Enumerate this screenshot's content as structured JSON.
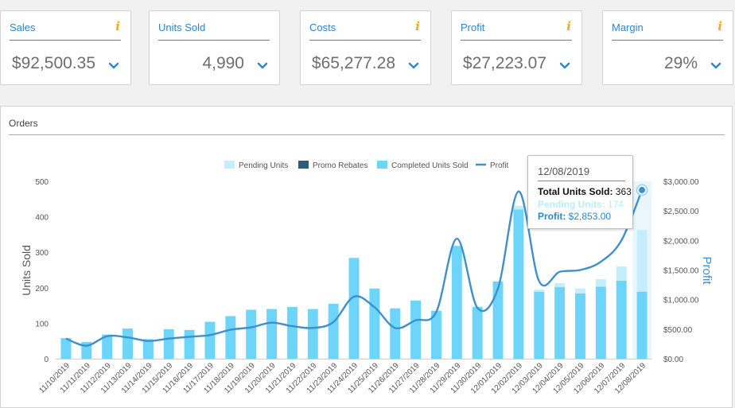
{
  "kpis": [
    {
      "title": "Sales",
      "value": "$92,500.35",
      "info": true
    },
    {
      "title": "Units Sold",
      "value": "4,990",
      "info": false
    },
    {
      "title": "Costs",
      "value": "$65,277.28",
      "info": true
    },
    {
      "title": "Profit",
      "value": "$27,223.07",
      "info": true
    },
    {
      "title": "Margin",
      "value": "29%",
      "info": true
    }
  ],
  "info_glyph": "i",
  "panel": {
    "title": "Orders"
  },
  "tooltip": {
    "date": "12/08/2019",
    "total_label": "Total Units Sold:",
    "total_value": "363",
    "pending_label": "Pending Units:",
    "pending_value": "174",
    "profit_label": "Profit:",
    "profit_value": "$2,853.00"
  },
  "colors": {
    "accent": "#2f86c4",
    "pending": "#c5eefc",
    "promo": "#2d5d7b",
    "completed": "#6dd4fa",
    "profit": "#3f8fc9",
    "info": "#f0ad1c"
  },
  "chart_data": {
    "type": "bar",
    "categories": [
      "11/10/2019",
      "11/11/2019",
      "11/12/2019",
      "11/13/2019",
      "11/14/2019",
      "11/15/2019",
      "11/16/2019",
      "11/17/2019",
      "11/18/2019",
      "11/19/2019",
      "11/20/2019",
      "11/21/2019",
      "11/22/2019",
      "11/23/2019",
      "11/24/2019",
      "11/25/2019",
      "11/26/2019",
      "11/27/2019",
      "11/28/2019",
      "11/29/2019",
      "11/30/2019",
      "12/01/2019",
      "12/02/2019",
      "12/03/2019",
      "12/04/2019",
      "12/05/2019",
      "12/06/2019",
      "12/07/2019",
      "12/08/2019"
    ],
    "series": [
      {
        "name": "Pending Units",
        "values": [
          0,
          0,
          0,
          0,
          0,
          0,
          0,
          0,
          0,
          0,
          0,
          0,
          0,
          0,
          0,
          0,
          0,
          0,
          0,
          0,
          0,
          0,
          10,
          6,
          11,
          14,
          21,
          40,
          174
        ]
      },
      {
        "name": "Promo Rebates",
        "values": [
          0,
          0,
          0,
          0,
          0,
          0,
          0,
          0,
          0,
          0,
          0,
          0,
          0,
          0,
          0,
          0,
          0,
          0,
          0,
          0,
          0,
          0,
          0,
          0,
          0,
          0,
          0,
          0,
          0
        ]
      },
      {
        "name": "Completed Units Sold",
        "values": [
          58,
          47,
          68,
          85,
          55,
          83,
          81,
          104,
          120,
          138,
          140,
          146,
          140,
          155,
          284,
          198,
          142,
          164,
          135,
          318,
          146,
          218,
          421,
          189,
          202,
          184,
          203,
          220,
          189
        ]
      },
      {
        "name": "Profit",
        "values": [
          340,
          220,
          380,
          360,
          300,
          340,
          370,
          400,
          490,
          530,
          610,
          550,
          520,
          620,
          1050,
          870,
          520,
          650,
          790,
          2030,
          860,
          1190,
          2830,
          1310,
          1470,
          1500,
          1640,
          2000,
          2853
        ]
      }
    ],
    "ylabel": "Units Sold",
    "y2label": "Profit",
    "ylim": [
      0,
      500
    ],
    "yticks": [
      "0",
      "100",
      "200",
      "300",
      "400",
      "500"
    ],
    "y2lim": [
      0,
      3000
    ],
    "y2ticks": [
      "$0.00",
      "$500.00",
      "$1,000.00",
      "$1,500.00",
      "$2,000.00",
      "$2,500.00",
      "$3,000.00"
    ],
    "legend": [
      "Pending Units",
      "Promo Rebates",
      "Completed Units Sold",
      "Profit"
    ],
    "legend_position": "top",
    "highlight_index": 28
  }
}
